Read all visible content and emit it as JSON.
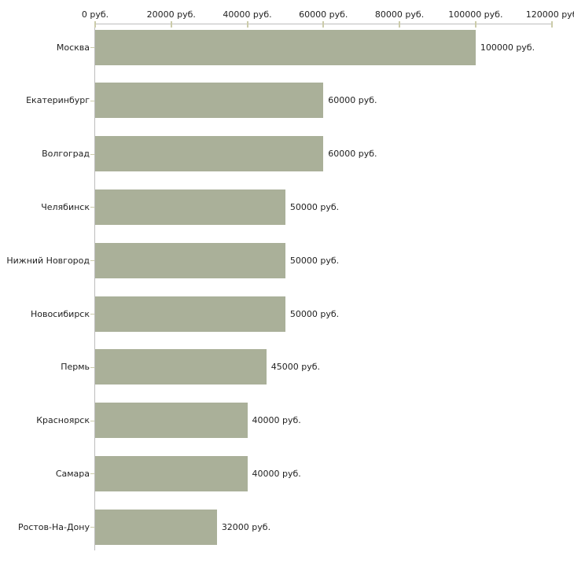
{
  "chart_data": {
    "type": "bar",
    "orientation": "horizontal",
    "title": "",
    "xlabel": "",
    "ylabel": "",
    "categories": [
      "Москва",
      "Екатеринбург",
      "Волгоград",
      "Челябинск",
      "Нижний Новгород",
      "Новосибирск",
      "Пермь",
      "Красноярск",
      "Самара",
      "Ростов-На-Дону"
    ],
    "values": [
      100000,
      60000,
      60000,
      50000,
      50000,
      50000,
      45000,
      40000,
      40000,
      32000
    ],
    "value_labels": [
      "100000 руб.",
      "60000 руб.",
      "60000 руб.",
      "50000 руб.",
      "50000 руб.",
      "50000 руб.",
      "45000 руб.",
      "40000 руб.",
      "40000 руб.",
      "32000 руб."
    ],
    "x_axis": {
      "position": "top",
      "range": [
        0,
        120000
      ],
      "ticks": [
        0,
        20000,
        40000,
        60000,
        80000,
        100000,
        120000
      ],
      "tick_labels": [
        "0 руб.",
        "20000 руб.",
        "40000 руб.",
        "60000 руб.",
        "80000 руб.",
        "100000 руб.",
        "120000 руб"
      ]
    },
    "grid": false,
    "legend": false,
    "colors": {
      "bar": "#aab099",
      "axis_line": "#bdbdbd",
      "tick": "#ccccaa",
      "text": "#222222",
      "background": "#ffffff"
    }
  }
}
